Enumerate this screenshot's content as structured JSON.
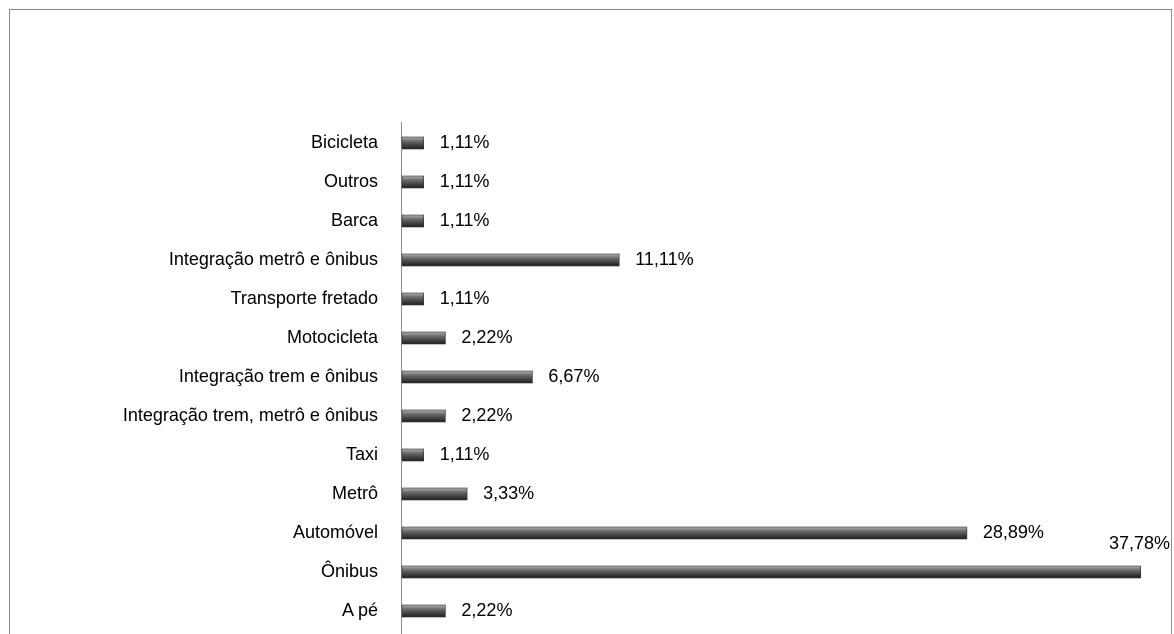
{
  "chart_data": {
    "type": "bar",
    "orientation": "horizontal",
    "categories": [
      "Bicicleta",
      "Outros",
      "Barca",
      "Integração metrô e ônibus",
      "Transporte fretado",
      "Motocicleta",
      "Integração trem e ônibus",
      "Integração trem, metrô e ônibus",
      "Taxi",
      "Metrô",
      "Automóvel",
      "Ônibus",
      "A pé"
    ],
    "values": [
      1.11,
      1.11,
      1.11,
      11.11,
      1.11,
      2.22,
      6.67,
      2.22,
      1.11,
      3.33,
      28.89,
      37.78,
      2.22
    ],
    "value_labels": [
      "1,11%",
      "1,11%",
      "1,11%",
      "11,11%",
      "1,11%",
      "2,22%",
      "6,67%",
      "2,22%",
      "1,11%",
      "3,33%",
      "28,89%",
      "37,78%",
      "2,22%"
    ],
    "color": "#555555",
    "xlim": [
      0,
      38
    ]
  }
}
